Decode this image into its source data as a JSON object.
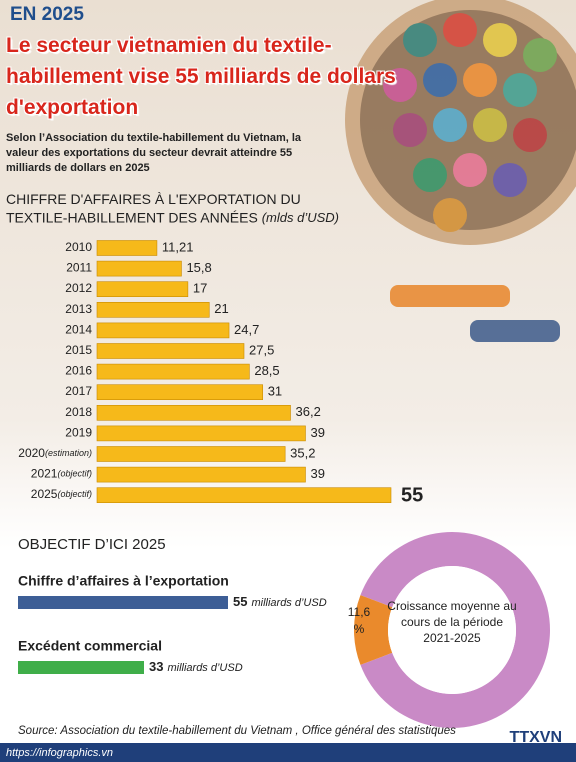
{
  "header": {
    "kicker": "EN 2025",
    "title": "Le secteur vietnamien du textile-habillement vise 55 milliards de dollars d'exportation",
    "subtitle": "Selon l’Association du textile-habillement du Vietnam, la valeur des exportations du secteur devrait atteindre 55 milliards de dollars en 2025"
  },
  "chart_data": [
    {
      "type": "bar",
      "orientation": "horizontal",
      "title": "CHIFFRE D'AFFAIRES À L'EXPORTATION DU TEXTILE-HABILLEMENT DES ANNÉES",
      "unit": "(mlds d’USD)",
      "categories": [
        "2010",
        "2011",
        "2012",
        "2013",
        "2014",
        "2015",
        "2016",
        "2017",
        "2018",
        "2019",
        "2020",
        "2021",
        "2025"
      ],
      "category_notes": [
        null,
        null,
        null,
        null,
        null,
        null,
        null,
        null,
        null,
        null,
        "(estimation)",
        "(objectif)",
        "(objectif)"
      ],
      "values": [
        11.21,
        15.8,
        17,
        21,
        24.7,
        27.5,
        28.5,
        31,
        36.2,
        39,
        35.2,
        39,
        55
      ],
      "value_labels": [
        "11,21",
        "15,8",
        "17",
        "21",
        "24,7",
        "27,5",
        "28,5",
        "31",
        "36,2",
        "39",
        "35,2",
        "39",
        "55"
      ],
      "color": "#f6b91a",
      "xlim": [
        0,
        55
      ]
    },
    {
      "type": "bar",
      "orientation": "horizontal",
      "title": "OBJECTIF D’ICI 2025",
      "categories": [
        "Chiffre d’affaires à l’exportation",
        "Excédent commercial"
      ],
      "values": [
        55,
        33
      ],
      "value_unit": "milliards d’USD",
      "colors": [
        "#3d5e96",
        "#3fae49"
      ],
      "xlim": [
        0,
        55
      ]
    },
    {
      "type": "pie",
      "donut": true,
      "values": [
        11.6
      ],
      "value_labels": [
        "11,6 %"
      ],
      "ylim": [
        0,
        100
      ],
      "color": "#ea8a2c",
      "rest_color": "#c98ac6",
      "center_text": "Croissance moyenne au cours de la période 2021-2025"
    }
  ],
  "source": "Source: Association du textile-habillement du Vietnam , Office général des statistiques",
  "url": "https://infographics.vn",
  "logo": "TTXVN"
}
